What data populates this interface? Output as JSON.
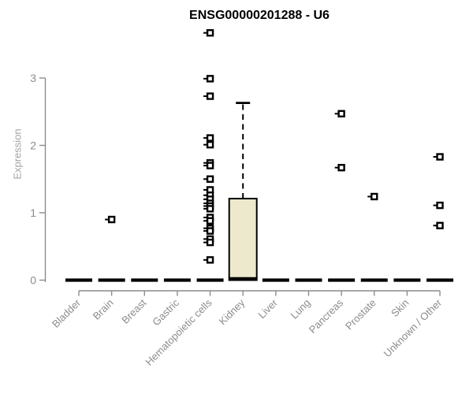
{
  "chart_data": {
    "type": "boxplot",
    "title": "ENSG00000201288 - U6",
    "xlabel": "",
    "ylabel": "Expression",
    "yticks": [
      0,
      1,
      2,
      3
    ],
    "ylim": [
      0,
      3.8
    ],
    "grid": false,
    "legend": "none",
    "categories": [
      "Bladder",
      "Brain",
      "Breast",
      "Gastric",
      "Hematopoietic cells",
      "Kidney",
      "Liver",
      "Lung",
      "Pancreas",
      "Prostate",
      "Skin",
      "Unknown / Other"
    ],
    "boxes": [
      {
        "category": "Bladder",
        "median": 0,
        "q1": 0,
        "q3": 0,
        "whisker_low": 0,
        "whisker_high": 0,
        "outliers": []
      },
      {
        "category": "Brain",
        "median": 0,
        "q1": 0,
        "q3": 0,
        "whisker_low": 0,
        "whisker_high": 0,
        "outliers": [
          0.9
        ]
      },
      {
        "category": "Breast",
        "median": 0,
        "q1": 0,
        "q3": 0,
        "whisker_low": 0,
        "whisker_high": 0,
        "outliers": []
      },
      {
        "category": "Gastric",
        "median": 0,
        "q1": 0,
        "q3": 0,
        "whisker_low": 0,
        "whisker_high": 0,
        "outliers": []
      },
      {
        "category": "Hematopoietic cells",
        "median": 0,
        "q1": 0,
        "q3": 0,
        "whisker_low": 0,
        "whisker_high": 0,
        "outliers": [
          3.67,
          2.99,
          2.73,
          2.11,
          2.01,
          1.74,
          1.7,
          1.5,
          1.34,
          1.26,
          1.2,
          1.14,
          1.1,
          1.06,
          0.93,
          0.88,
          0.77,
          0.73,
          0.61,
          0.56,
          0.3
        ]
      },
      {
        "category": "Kidney",
        "median": 0.02,
        "q1": 0,
        "q3": 1.21,
        "whisker_low": 0,
        "whisker_high": 2.63,
        "outliers": []
      },
      {
        "category": "Liver",
        "median": 0,
        "q1": 0,
        "q3": 0,
        "whisker_low": 0,
        "whisker_high": 0,
        "outliers": []
      },
      {
        "category": "Lung",
        "median": 0,
        "q1": 0,
        "q3": 0,
        "whisker_low": 0,
        "whisker_high": 0,
        "outliers": []
      },
      {
        "category": "Pancreas",
        "median": 0,
        "q1": 0,
        "q3": 0,
        "whisker_low": 0,
        "whisker_high": 0,
        "outliers": [
          2.47,
          1.67
        ]
      },
      {
        "category": "Prostate",
        "median": 0,
        "q1": 0,
        "q3": 0,
        "whisker_low": 0,
        "whisker_high": 0,
        "outliers": [
          1.24
        ]
      },
      {
        "category": "Skin",
        "median": 0,
        "q1": 0,
        "q3": 0,
        "whisker_low": 0,
        "whisker_high": 0,
        "outliers": []
      },
      {
        "category": "Unknown / Other",
        "median": 0,
        "q1": 0,
        "q3": 0,
        "whisker_low": 0,
        "whisker_high": 0,
        "outliers": [
          1.83,
          1.11,
          0.81
        ]
      }
    ],
    "colors": {
      "box_fill": "#ece9cd",
      "box_stroke": "#000000",
      "median": "#000000",
      "outlier": "#000000",
      "axis": "#8c8c8c",
      "tick_label": "#8c8c8c",
      "ylabel_color": "#a3a3a3",
      "title_color": "#000000"
    }
  }
}
